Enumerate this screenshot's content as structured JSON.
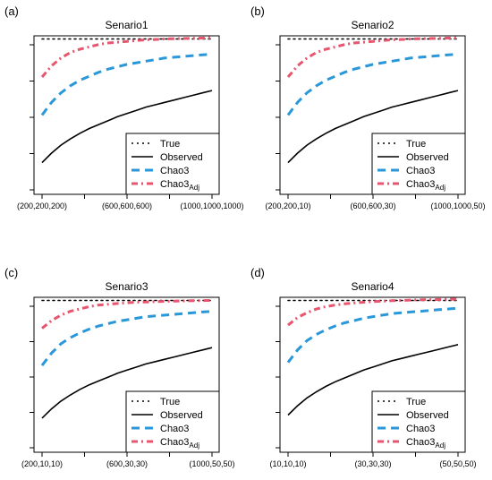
{
  "chart_data": [
    {
      "type": "line",
      "panel_label": "(a)",
      "title": "Senario1",
      "x_tick_labels": [
        "(200,200,200)",
        "(600,600,600)",
        "(1000,1000,1000)"
      ],
      "x": [
        0,
        1,
        2,
        3,
        4,
        5,
        6,
        7,
        8,
        9,
        10,
        11,
        12,
        13,
        14,
        15,
        16,
        17,
        18
      ],
      "ylim": [
        0,
        1
      ],
      "grid": false,
      "legend_position": "bottom-right",
      "series": [
        {
          "name": "True",
          "style": "dotted",
          "color": "#000000",
          "values": [
            0.98,
            0.98,
            0.98,
            0.98,
            0.98,
            0.98,
            0.98,
            0.98,
            0.98,
            0.98,
            0.98,
            0.98,
            0.98,
            0.98,
            0.98,
            0.98,
            0.98,
            0.98,
            0.98
          ]
        },
        {
          "name": "Observed",
          "style": "solid",
          "color": "#000000",
          "values": [
            0.2,
            0.26,
            0.31,
            0.35,
            0.385,
            0.415,
            0.44,
            0.465,
            0.49,
            0.51,
            0.53,
            0.55,
            0.565,
            0.58,
            0.595,
            0.61,
            0.625,
            0.64,
            0.655
          ]
        },
        {
          "name": "Chao3",
          "style": "dashed",
          "color": "#2a98d8",
          "values": [
            0.5,
            0.58,
            0.64,
            0.685,
            0.72,
            0.745,
            0.77,
            0.79,
            0.805,
            0.82,
            0.83,
            0.84,
            0.85,
            0.86,
            0.865,
            0.87,
            0.875,
            0.88,
            0.885
          ]
        },
        {
          "name": "Chao3",
          "name_sub": "Adj",
          "style": "dotdash",
          "color": "#e8556e",
          "values": [
            0.74,
            0.81,
            0.86,
            0.895,
            0.915,
            0.93,
            0.945,
            0.955,
            0.96,
            0.965,
            0.97,
            0.975,
            0.977,
            0.98,
            0.982,
            0.983,
            0.985,
            0.986,
            0.988
          ]
        }
      ]
    },
    {
      "type": "line",
      "panel_label": "(b)",
      "title": "Senario2",
      "x_tick_labels": [
        "(200,200,10)",
        "(600,600,30)",
        "(1000,1000,50)"
      ],
      "x": [
        0,
        1,
        2,
        3,
        4,
        5,
        6,
        7,
        8,
        9,
        10,
        11,
        12,
        13,
        14,
        15,
        16,
        17,
        18
      ],
      "ylim": [
        0,
        1
      ],
      "grid": false,
      "legend_position": "bottom-right",
      "series": [
        {
          "name": "True",
          "style": "dotted",
          "color": "#000000",
          "values": [
            0.98,
            0.98,
            0.98,
            0.98,
            0.98,
            0.98,
            0.98,
            0.98,
            0.98,
            0.98,
            0.98,
            0.98,
            0.98,
            0.98,
            0.98,
            0.98,
            0.98,
            0.98,
            0.98
          ]
        },
        {
          "name": "Observed",
          "style": "solid",
          "color": "#000000",
          "values": [
            0.2,
            0.26,
            0.31,
            0.35,
            0.385,
            0.415,
            0.44,
            0.465,
            0.49,
            0.51,
            0.53,
            0.55,
            0.565,
            0.58,
            0.595,
            0.61,
            0.625,
            0.64,
            0.655
          ]
        },
        {
          "name": "Chao3",
          "style": "dashed",
          "color": "#2a98d8",
          "values": [
            0.5,
            0.58,
            0.64,
            0.685,
            0.72,
            0.745,
            0.77,
            0.79,
            0.805,
            0.82,
            0.83,
            0.84,
            0.85,
            0.86,
            0.865,
            0.87,
            0.875,
            0.88,
            0.885
          ]
        },
        {
          "name": "Chao3",
          "name_sub": "Adj",
          "style": "dotdash",
          "color": "#e8556e",
          "values": [
            0.74,
            0.81,
            0.86,
            0.895,
            0.915,
            0.93,
            0.945,
            0.955,
            0.96,
            0.965,
            0.97,
            0.975,
            0.977,
            0.98,
            0.982,
            0.983,
            0.985,
            0.986,
            0.988
          ]
        }
      ]
    },
    {
      "type": "line",
      "panel_label": "(c)",
      "title": "Senario3",
      "x_tick_labels": [
        "(200,10,10)",
        "(600,30,30)",
        "(1000,50,50)"
      ],
      "x": [
        0,
        1,
        2,
        3,
        4,
        5,
        6,
        7,
        8,
        9,
        10,
        11,
        12,
        13,
        14,
        15,
        16,
        17,
        18
      ],
      "ylim": [
        0,
        1
      ],
      "grid": false,
      "legend_position": "bottom-right",
      "series": [
        {
          "name": "True",
          "style": "dotted",
          "color": "#000000",
          "values": [
            0.98,
            0.98,
            0.98,
            0.98,
            0.98,
            0.98,
            0.98,
            0.98,
            0.98,
            0.98,
            0.98,
            0.98,
            0.98,
            0.98,
            0.98,
            0.98,
            0.98,
            0.98,
            0.98
          ]
        },
        {
          "name": "Observed",
          "style": "solid",
          "color": "#000000",
          "values": [
            0.22,
            0.28,
            0.33,
            0.37,
            0.405,
            0.435,
            0.46,
            0.485,
            0.51,
            0.53,
            0.55,
            0.57,
            0.585,
            0.6,
            0.615,
            0.63,
            0.645,
            0.66,
            0.675
          ]
        },
        {
          "name": "Chao3",
          "style": "dashed",
          "color": "#2a98d8",
          "values": [
            0.56,
            0.64,
            0.7,
            0.74,
            0.77,
            0.795,
            0.815,
            0.83,
            0.845,
            0.855,
            0.865,
            0.875,
            0.88,
            0.885,
            0.89,
            0.895,
            0.9,
            0.905,
            0.91
          ]
        },
        {
          "name": "Chao3",
          "name_sub": "Adj",
          "style": "dotdash",
          "color": "#e8556e",
          "values": [
            0.8,
            0.85,
            0.885,
            0.91,
            0.925,
            0.94,
            0.95,
            0.955,
            0.96,
            0.965,
            0.968,
            0.97,
            0.972,
            0.974,
            0.976,
            0.977,
            0.978,
            0.979,
            0.98
          ]
        }
      ]
    },
    {
      "type": "line",
      "panel_label": "(d)",
      "title": "Senario4",
      "x_tick_labels": [
        "(10,10,10)",
        "(30,30,30)",
        "(50,50,50)"
      ],
      "x": [
        0,
        1,
        2,
        3,
        4,
        5,
        6,
        7,
        8,
        9,
        10,
        11,
        12,
        13,
        14,
        15,
        16,
        17,
        18
      ],
      "ylim": [
        0,
        1
      ],
      "grid": false,
      "legend_position": "bottom-right",
      "series": [
        {
          "name": "True",
          "style": "dotted",
          "color": "#000000",
          "values": [
            0.98,
            0.98,
            0.98,
            0.98,
            0.98,
            0.98,
            0.98,
            0.98,
            0.98,
            0.98,
            0.98,
            0.98,
            0.98,
            0.98,
            0.98,
            0.98,
            0.98,
            0.98,
            0.98
          ]
        },
        {
          "name": "Observed",
          "style": "solid",
          "color": "#000000",
          "values": [
            0.24,
            0.3,
            0.35,
            0.39,
            0.425,
            0.455,
            0.48,
            0.505,
            0.53,
            0.55,
            0.57,
            0.59,
            0.605,
            0.62,
            0.635,
            0.65,
            0.665,
            0.68,
            0.695
          ]
        },
        {
          "name": "Chao3",
          "style": "dashed",
          "color": "#2a98d8",
          "values": [
            0.58,
            0.66,
            0.72,
            0.76,
            0.79,
            0.815,
            0.835,
            0.85,
            0.865,
            0.875,
            0.885,
            0.895,
            0.9,
            0.905,
            0.91,
            0.915,
            0.92,
            0.925,
            0.93
          ]
        },
        {
          "name": "Chao3",
          "name_sub": "Adj",
          "style": "dotdash",
          "color": "#e8556e",
          "values": [
            0.82,
            0.87,
            0.9,
            0.925,
            0.94,
            0.95,
            0.958,
            0.963,
            0.968,
            0.972,
            0.975,
            0.978,
            0.98,
            0.982,
            0.984,
            0.985,
            0.986,
            0.987,
            0.988
          ]
        }
      ]
    }
  ]
}
